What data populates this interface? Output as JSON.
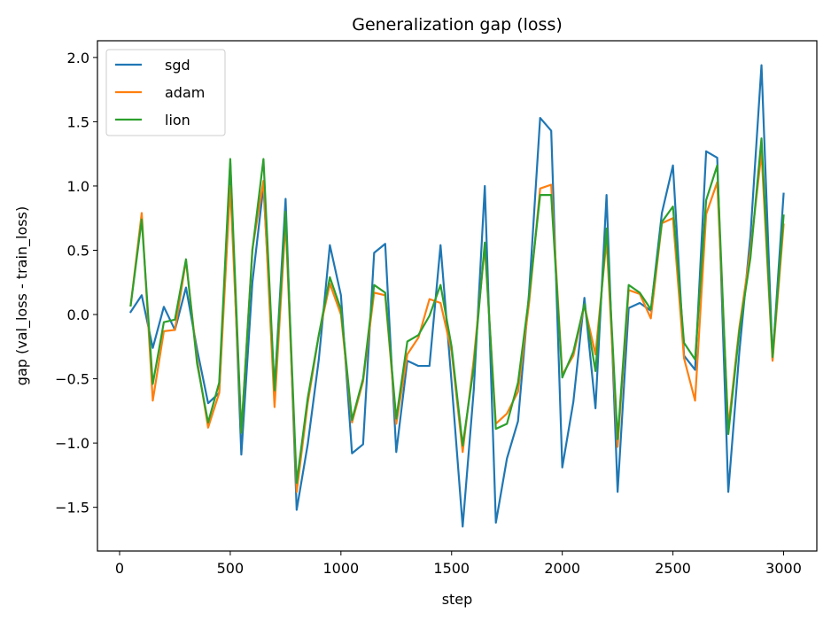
{
  "chart_data": {
    "type": "line",
    "title": "Generalization gap (loss)",
    "xlabel": "step",
    "ylabel": "gap (val_loss - train_loss)",
    "xlim": [
      -100,
      3150
    ],
    "ylim": [
      -1.84,
      2.13
    ],
    "xticks": [
      0,
      500,
      1000,
      1500,
      2000,
      2500,
      3000
    ],
    "xtick_labels": [
      "0",
      "500",
      "1000",
      "1500",
      "2000",
      "2500",
      "3000"
    ],
    "yticks": [
      -1.5,
      -1.0,
      -0.5,
      0.0,
      0.5,
      1.0,
      1.5,
      2.0
    ],
    "ytick_labels": [
      "−1.5",
      "−1.0",
      "−0.5",
      "0.0",
      "0.5",
      "1.0",
      "1.5",
      "2.0"
    ],
    "grid": false,
    "legend_position": "top-left",
    "x": [
      50,
      100,
      150,
      200,
      250,
      300,
      350,
      400,
      450,
      500,
      550,
      600,
      650,
      700,
      750,
      800,
      850,
      900,
      950,
      1000,
      1050,
      1100,
      1150,
      1200,
      1250,
      1300,
      1350,
      1400,
      1450,
      1500,
      1550,
      1600,
      1650,
      1700,
      1750,
      1800,
      1850,
      1900,
      1950,
      2000,
      2050,
      2100,
      2150,
      2200,
      2250,
      2300,
      2350,
      2400,
      2450,
      2500,
      2550,
      2600,
      2650,
      2700,
      2750,
      2800,
      2850,
      2900,
      2950,
      3000
    ],
    "series": [
      {
        "name": "sgd",
        "color": "#1f77b4",
        "values": [
          0.02,
          0.15,
          -0.26,
          0.06,
          -0.12,
          0.21,
          -0.27,
          -0.69,
          -0.61,
          1.18,
          -1.09,
          0.25,
          1.0,
          -0.58,
          0.9,
          -1.52,
          -1.01,
          -0.35,
          0.54,
          0.15,
          -1.08,
          -1.01,
          0.48,
          0.55,
          -1.07,
          -0.36,
          -0.4,
          -0.4,
          0.54,
          -0.53,
          -1.65,
          -0.59,
          1.0,
          -1.62,
          -1.12,
          -0.83,
          0.17,
          1.53,
          1.43,
          -1.19,
          -0.68,
          0.13,
          -0.73,
          0.93,
          -1.38,
          0.05,
          0.09,
          0.03,
          0.79,
          1.16,
          -0.32,
          -0.43,
          1.27,
          1.22,
          -1.38,
          -0.29,
          0.61,
          1.94,
          -0.35,
          0.94
        ]
      },
      {
        "name": "adam",
        "color": "#ff7f0e",
        "values": [
          0.07,
          0.79,
          -0.67,
          -0.13,
          -0.12,
          0.42,
          -0.35,
          -0.88,
          -0.61,
          1.0,
          -0.92,
          0.51,
          1.04,
          -0.72,
          0.73,
          -1.38,
          -0.69,
          -0.16,
          0.24,
          0.0,
          -0.84,
          -0.52,
          0.17,
          0.15,
          -0.85,
          -0.31,
          -0.18,
          0.12,
          0.09,
          -0.29,
          -1.07,
          -0.35,
          0.53,
          -0.85,
          -0.77,
          -0.6,
          0.09,
          0.98,
          1.01,
          -0.47,
          -0.32,
          0.07,
          -0.31,
          0.58,
          -1.03,
          0.19,
          0.16,
          -0.03,
          0.71,
          0.75,
          -0.34,
          -0.67,
          0.78,
          1.03,
          -0.88,
          -0.1,
          0.5,
          1.26,
          -0.36,
          0.7
        ]
      },
      {
        "name": "lion",
        "color": "#2ca02c",
        "values": [
          0.07,
          0.74,
          -0.54,
          -0.06,
          -0.04,
          0.43,
          -0.38,
          -0.84,
          -0.53,
          1.21,
          -0.92,
          0.5,
          1.21,
          -0.59,
          0.8,
          -1.31,
          -0.65,
          -0.16,
          0.29,
          0.04,
          -0.82,
          -0.5,
          0.23,
          0.17,
          -0.81,
          -0.21,
          -0.16,
          -0.01,
          0.23,
          -0.25,
          -1.02,
          -0.41,
          0.56,
          -0.89,
          -0.85,
          -0.53,
          0.14,
          0.93,
          0.93,
          -0.49,
          -0.29,
          0.08,
          -0.44,
          0.67,
          -0.97,
          0.23,
          0.17,
          0.04,
          0.72,
          0.84,
          -0.22,
          -0.35,
          0.89,
          1.16,
          -0.93,
          -0.13,
          0.44,
          1.37,
          -0.33,
          0.77
        ]
      }
    ]
  }
}
